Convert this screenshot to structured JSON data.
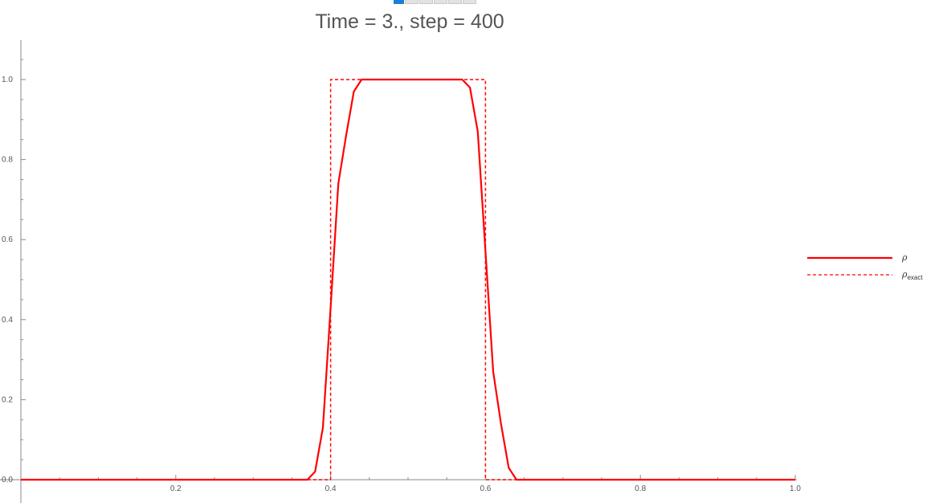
{
  "controls": {
    "animation_frames": 6,
    "active_frame": 1
  },
  "chart_data": {
    "type": "line",
    "title": "Time = 3., step = 400",
    "xlabel": "",
    "ylabel": "",
    "xlim": [
      0.0,
      1.0
    ],
    "ylim": [
      0.0,
      1.0
    ],
    "xticks": [
      0.2,
      0.4,
      0.6,
      0.8,
      1.0
    ],
    "xtick_labels": [
      "0.2",
      "0.4",
      "0.6",
      "0.8",
      "1.0"
    ],
    "yticks": [
      0.0,
      0.2,
      0.4,
      0.6,
      0.8,
      1.0
    ],
    "ytick_labels": [
      "0.0",
      "0.2",
      "0.4",
      "0.6",
      "0.8",
      "1.0"
    ],
    "grid": false,
    "legend_position": "right",
    "series": [
      {
        "name": "ρ",
        "color": "#ff0000",
        "style": "solid",
        "x": [
          0.0,
          0.35,
          0.37,
          0.38,
          0.39,
          0.4,
          0.41,
          0.42,
          0.43,
          0.44,
          0.45,
          0.5,
          0.55,
          0.56,
          0.57,
          0.58,
          0.59,
          0.6,
          0.61,
          0.62,
          0.63,
          0.64,
          0.65,
          1.0
        ],
        "y": [
          0.0,
          0.0,
          0.0,
          0.02,
          0.13,
          0.43,
          0.74,
          0.86,
          0.97,
          1.0,
          1.0,
          1.0,
          1.0,
          1.0,
          1.0,
          0.98,
          0.87,
          0.57,
          0.27,
          0.14,
          0.03,
          0.0,
          0.0,
          0.0
        ]
      },
      {
        "name": "ρexact",
        "color": "#ff0000",
        "style": "dashed",
        "x": [
          0.0,
          0.4,
          0.4,
          0.6,
          0.6,
          1.0
        ],
        "y": [
          0.0,
          0.0,
          1.0,
          1.0,
          0.0,
          0.0
        ]
      }
    ],
    "legend": [
      {
        "symbol": "ρ",
        "subscript": "",
        "style": "solid"
      },
      {
        "symbol": "ρ",
        "subscript": "exact",
        "style": "dashed"
      }
    ]
  }
}
